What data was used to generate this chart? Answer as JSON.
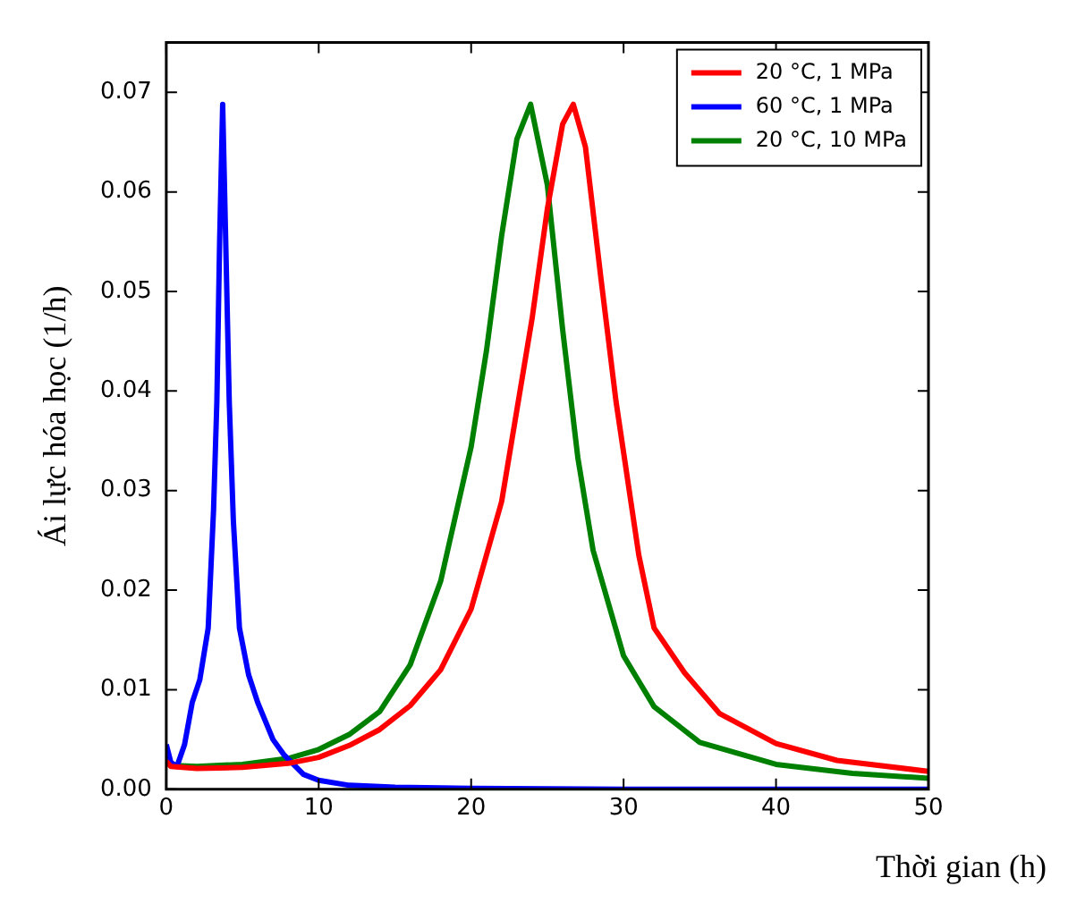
{
  "chart_data": {
    "type": "line",
    "xlabel": "Thời gian (h)",
    "ylabel": "Ái lực hóa học (1/h)",
    "xlim": [
      0,
      50
    ],
    "xticks": [
      0,
      10,
      20,
      30,
      40,
      50
    ],
    "ylim": [
      0,
      0.075
    ],
    "yticks": [
      {
        "value": 0,
        "label": "0.00"
      },
      {
        "value": 0.01,
        "label": "0.01"
      },
      {
        "value": 0.02,
        "label": "0.02"
      },
      {
        "value": 0.03,
        "label": "0.03"
      },
      {
        "value": 0.04,
        "label": "0.04"
      },
      {
        "value": 0.05,
        "label": "0.05"
      },
      {
        "value": 0.06,
        "label": "0.06"
      },
      {
        "value": 0.07,
        "label": "0.07"
      }
    ],
    "grid": false,
    "legend": "top right",
    "marker": "none",
    "line_style": "solid",
    "series": [
      {
        "name": "20 °C, 1 MPa",
        "color": "#ff0000",
        "x": [
          0,
          0.3,
          2,
          5,
          8,
          10,
          12,
          14,
          16,
          18,
          20,
          22,
          24,
          25,
          26,
          26.7,
          27.5,
          28.5,
          29.5,
          31,
          32,
          34,
          36.3,
          40,
          44,
          50
        ],
        "values": [
          0.0028,
          0.0023,
          0.0021,
          0.0022,
          0.0026,
          0.0032,
          0.0044,
          0.006,
          0.0084,
          0.012,
          0.0181,
          0.0289,
          0.0473,
          0.0583,
          0.0668,
          0.0688,
          0.0645,
          0.0515,
          0.039,
          0.0235,
          0.0162,
          0.0117,
          0.0076,
          0.0046,
          0.0029,
          0.0018
        ]
      },
      {
        "name": "60 °C, 1 MPa",
        "color": "#0000ff",
        "x": [
          0,
          0.3,
          0.7,
          1.2,
          1.7,
          2.2,
          2.75,
          3.1,
          3.32,
          3.5,
          3.7,
          3.9,
          4.13,
          4.4,
          4.8,
          5.4,
          6,
          7,
          7.7,
          9,
          10,
          12,
          15,
          20,
          30,
          40,
          50
        ],
        "values": [
          0.0045,
          0.0027,
          0.0023,
          0.0045,
          0.0087,
          0.011,
          0.0162,
          0.028,
          0.039,
          0.055,
          0.0688,
          0.055,
          0.039,
          0.027,
          0.0162,
          0.0115,
          0.0087,
          0.005,
          0.0035,
          0.0015,
          0.0009,
          0.0004,
          0.0002,
          0.0001,
          0,
          0,
          0
        ]
      },
      {
        "name": "20 °C, 10 MPa",
        "color": "#008000",
        "x": [
          0,
          0.3,
          2,
          5,
          8,
          10,
          12,
          14,
          16,
          18,
          20,
          21,
          22,
          23,
          23.9,
          25,
          26,
          27,
          28,
          30,
          32,
          35,
          40,
          45,
          50
        ],
        "values": [
          0.003,
          0.0024,
          0.0023,
          0.0025,
          0.0031,
          0.004,
          0.0055,
          0.0078,
          0.0125,
          0.0209,
          0.0344,
          0.044,
          0.0556,
          0.0653,
          0.0688,
          0.0607,
          0.0462,
          0.0333,
          0.024,
          0.0134,
          0.0083,
          0.0047,
          0.0025,
          0.0016,
          0.0011
        ]
      }
    ]
  }
}
